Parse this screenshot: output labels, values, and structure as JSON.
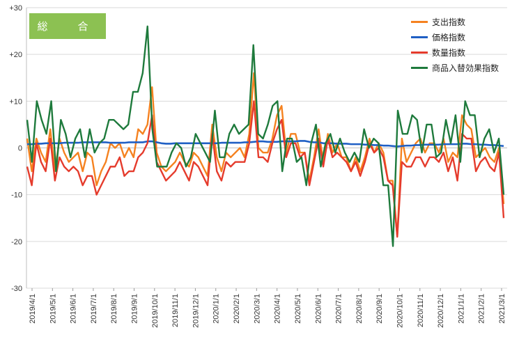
{
  "chart_data": {
    "type": "line",
    "title": "総　合",
    "ylim": [
      -30,
      30
    ],
    "y_ticks": [
      "+30",
      "+20",
      "+10",
      "0",
      "-10",
      "-20",
      "-30"
    ],
    "y_tick_values": [
      30,
      20,
      10,
      0,
      -10,
      -20,
      -30
    ],
    "x_ticks": [
      "2019/4/1",
      "2019/5/1",
      "2019/6/1",
      "2019/7/1",
      "2019/8/1",
      "2019/9/1",
      "2019/10/1",
      "2019/11/1",
      "2019/12/1",
      "2020/1/1",
      "2020/2/1",
      "2020/3/1",
      "2020/4/1",
      "2020/5/1",
      "2020/6/1",
      "2020/7/1",
      "2020/8/1",
      "2020/9/1",
      "2020/10/1",
      "2020/11/1",
      "2020/12/1",
      "2021/1/1",
      "2021/2/1",
      "2021/3/1"
    ],
    "grid": true,
    "legend_position": "top-right",
    "series": [
      {
        "name": "支出指数",
        "color": "#f58220",
        "values": [
          2,
          -5,
          2,
          -1,
          -3,
          4,
          -5,
          2,
          -1,
          -3,
          -2,
          -1,
          -5,
          -1,
          -2,
          -8,
          -5,
          -3,
          1,
          0,
          1,
          -2,
          0,
          -2,
          4,
          3,
          5,
          13,
          -1,
          -4,
          -5,
          -4,
          -3,
          -1,
          -3,
          -4,
          -1,
          -2,
          -4,
          -6,
          5,
          -2,
          -5,
          -1,
          -2,
          -1,
          0,
          -2,
          3,
          16,
          0,
          -1,
          -1,
          2,
          7,
          9,
          -1,
          3,
          3,
          -1,
          -1,
          -7,
          -2,
          4,
          -3,
          3,
          -1,
          1,
          -2,
          -2,
          -5,
          -2,
          -5,
          -2,
          2,
          -1,
          1,
          -1,
          -7,
          -7,
          -19,
          2,
          -3,
          -1,
          1,
          2,
          -1,
          1,
          1,
          -1,
          2,
          -3,
          -1,
          -2,
          7,
          5,
          4,
          -2,
          -1,
          0,
          -2,
          -3,
          0,
          -12
        ]
      },
      {
        "name": "価格指数",
        "color": "#1f5fc4",
        "values": [
          0.8,
          0.8,
          0.9,
          0.9,
          1.0,
          1.0,
          1.0,
          1.0,
          1.1,
          1.1,
          1.1,
          1.1,
          1.2,
          1.2,
          1.2,
          1.2,
          1.2,
          1.2,
          1.1,
          1.1,
          1.1,
          1.1,
          1.2,
          1.2,
          1.2,
          1.2,
          1.4,
          1.4,
          1.2,
          1.0,
          0.9,
          0.9,
          1.0,
          1.0,
          1.0,
          1.0,
          1.0,
          1.0,
          1.0,
          1.0,
          1.0,
          1.0,
          1.1,
          1.1,
          1.1,
          1.1,
          1.1,
          1.2,
          1.2,
          1.3,
          1.4,
          1.4,
          1.3,
          1.3,
          1.3,
          1.4,
          1.4,
          1.4,
          1.4,
          1.5,
          1.5,
          1.3,
          1.2,
          1.2,
          1.0,
          1.0,
          1.0,
          0.9,
          0.9,
          0.9,
          0.8,
          0.8,
          0.8,
          0.7,
          0.7,
          0.6,
          0.6,
          0.5,
          0.5,
          0.4,
          0.3,
          0.4,
          0.5,
          0.5,
          0.6,
          0.6,
          0.7,
          0.7,
          0.7,
          0.7,
          0.8,
          0.8,
          0.8,
          0.8,
          0.9,
          0.9,
          0.8,
          0.8,
          0.7,
          0.7,
          0.6,
          0.6,
          0.5,
          0.4
        ]
      },
      {
        "name": "数量指数",
        "color": "#e53b2c",
        "values": [
          -4,
          -8,
          1,
          -3,
          -5,
          2,
          -7,
          -2,
          -4,
          -5,
          -4,
          -5,
          -8,
          -6,
          -6,
          -10,
          -8,
          -6,
          -4,
          -4,
          -2,
          -6,
          -5,
          -5,
          -2,
          -1,
          1,
          7,
          -3,
          -5,
          -7,
          -6,
          -5,
          -3,
          -5,
          -7,
          -3,
          -4,
          -6,
          -8,
          3,
          -5,
          -7,
          -3,
          -4,
          -3,
          -3,
          -3,
          1,
          10,
          -2,
          -2,
          -3,
          1,
          4,
          6,
          -2,
          1,
          1,
          -2,
          -1,
          -8,
          -3,
          2,
          -4,
          2,
          -2,
          -1,
          -2,
          -3,
          -5,
          -3,
          -6,
          -3,
          1,
          -1,
          0,
          -2,
          -7,
          -8,
          -19,
          -3,
          -4,
          -4,
          -2,
          -2,
          -4,
          -2,
          -2,
          -3,
          -1,
          -5,
          -2,
          -7,
          3,
          2,
          2,
          -5,
          -3,
          -2,
          -4,
          -5,
          -1,
          -15
        ]
      },
      {
        "name": "商品入替効果指数",
        "color": "#1e7a3c",
        "values": [
          6,
          -3,
          10,
          6,
          3,
          10,
          -5,
          6,
          3,
          -2,
          2,
          4,
          -2,
          4,
          -1,
          1,
          2,
          6,
          6,
          5,
          4,
          5,
          12,
          12,
          16,
          26,
          4,
          -4,
          -4,
          -4,
          -1,
          1,
          0,
          -4,
          -2,
          3,
          1,
          -1,
          -3,
          8,
          -2,
          -2,
          3,
          5,
          3,
          4,
          5,
          22,
          3,
          2,
          5,
          9,
          10,
          -5,
          2,
          2,
          -3,
          -2,
          -8,
          1,
          5,
          -4,
          1,
          3,
          -1,
          2,
          -1,
          -3,
          -1,
          -3,
          4,
          0,
          2,
          1,
          -8,
          -8,
          -21,
          8,
          3,
          3,
          7,
          6,
          -1,
          5,
          5,
          -2,
          -1,
          6,
          1,
          7,
          -3,
          10,
          7,
          7,
          -2,
          2,
          4,
          -1,
          2,
          -10
        ]
      }
    ]
  }
}
